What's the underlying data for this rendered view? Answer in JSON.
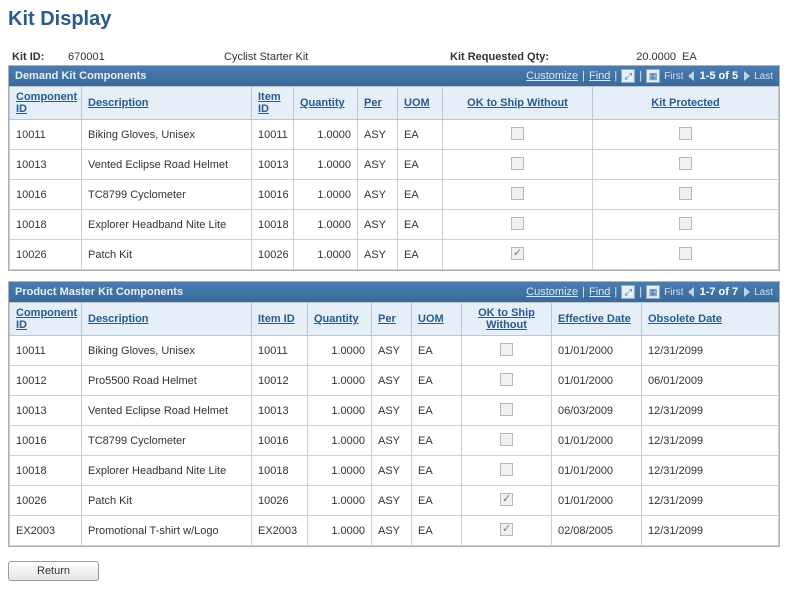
{
  "page": {
    "title": "Kit Display"
  },
  "header": {
    "kit_id_label": "Kit ID:",
    "kit_id": "670001",
    "kit_desc": "Cyclist Starter Kit",
    "req_qty_label": "Kit Requested Qty:",
    "req_qty": "20.0000",
    "req_uom": "EA"
  },
  "toolbar": {
    "customize": "Customize",
    "find": "Find",
    "first": "First",
    "last": "Last"
  },
  "demand": {
    "title": "Demand Kit Components",
    "range": "1-5 of 5",
    "columns": {
      "component_id": "Component ID",
      "description": "Description",
      "item_id": "Item ID",
      "quantity": "Quantity",
      "per": "Per",
      "uom": "UOM",
      "ok_ship": "OK to Ship Without",
      "kit_protected": "Kit Protected"
    },
    "rows": [
      {
        "component_id": "10011",
        "description": "Biking Gloves, Unisex",
        "item_id": "10011",
        "quantity": "1.0000",
        "per": "ASY",
        "uom": "EA",
        "ok_ship": false,
        "kit_protected": false
      },
      {
        "component_id": "10013",
        "description": "Vented Eclipse Road Helmet",
        "item_id": "10013",
        "quantity": "1.0000",
        "per": "ASY",
        "uom": "EA",
        "ok_ship": false,
        "kit_protected": false
      },
      {
        "component_id": "10016",
        "description": "TC8799 Cyclometer",
        "item_id": "10016",
        "quantity": "1.0000",
        "per": "ASY",
        "uom": "EA",
        "ok_ship": false,
        "kit_protected": false
      },
      {
        "component_id": "10018",
        "description": "Explorer Headband Nite Lite",
        "item_id": "10018",
        "quantity": "1.0000",
        "per": "ASY",
        "uom": "EA",
        "ok_ship": false,
        "kit_protected": false
      },
      {
        "component_id": "10026",
        "description": "Patch Kit",
        "item_id": "10026",
        "quantity": "1.0000",
        "per": "ASY",
        "uom": "EA",
        "ok_ship": true,
        "kit_protected": false
      }
    ]
  },
  "master": {
    "title": "Product Master Kit Components",
    "range": "1-7 of 7",
    "columns": {
      "component_id": "Component ID",
      "description": "Description",
      "item_id": "Item ID",
      "quantity": "Quantity",
      "per": "Per",
      "uom": "UOM",
      "ok_ship": "OK to Ship Without",
      "effective_date": "Effective Date",
      "obsolete_date": "Obsolete Date"
    },
    "rows": [
      {
        "component_id": "10011",
        "description": "Biking Gloves, Unisex",
        "item_id": "10011",
        "quantity": "1.0000",
        "per": "ASY",
        "uom": "EA",
        "ok_ship": false,
        "effective_date": "01/01/2000",
        "obsolete_date": "12/31/2099"
      },
      {
        "component_id": "10012",
        "description": "Pro5500 Road Helmet",
        "item_id": "10012",
        "quantity": "1.0000",
        "per": "ASY",
        "uom": "EA",
        "ok_ship": false,
        "effective_date": "01/01/2000",
        "obsolete_date": "06/01/2009"
      },
      {
        "component_id": "10013",
        "description": "Vented Eclipse Road Helmet",
        "item_id": "10013",
        "quantity": "1.0000",
        "per": "ASY",
        "uom": "EA",
        "ok_ship": false,
        "effective_date": "06/03/2009",
        "obsolete_date": "12/31/2099"
      },
      {
        "component_id": "10016",
        "description": "TC8799 Cyclometer",
        "item_id": "10016",
        "quantity": "1.0000",
        "per": "ASY",
        "uom": "EA",
        "ok_ship": false,
        "effective_date": "01/01/2000",
        "obsolete_date": "12/31/2099"
      },
      {
        "component_id": "10018",
        "description": "Explorer Headband Nite Lite",
        "item_id": "10018",
        "quantity": "1.0000",
        "per": "ASY",
        "uom": "EA",
        "ok_ship": false,
        "effective_date": "01/01/2000",
        "obsolete_date": "12/31/2099"
      },
      {
        "component_id": "10026",
        "description": "Patch Kit",
        "item_id": "10026",
        "quantity": "1.0000",
        "per": "ASY",
        "uom": "EA",
        "ok_ship": true,
        "effective_date": "01/01/2000",
        "obsolete_date": "12/31/2099"
      },
      {
        "component_id": "EX2003",
        "description": "Promotional T-shirt w/Logo",
        "item_id": "EX2003",
        "quantity": "1.0000",
        "per": "ASY",
        "uom": "EA",
        "ok_ship": true,
        "effective_date": "02/08/2005",
        "obsolete_date": "12/31/2099"
      }
    ]
  },
  "buttons": {
    "return": "Return"
  },
  "style": {
    "accent": "#2b5a8c",
    "header_bg": "#3a6a9c",
    "th_bg": "#e6eef7",
    "border": "#b8c6d6"
  }
}
